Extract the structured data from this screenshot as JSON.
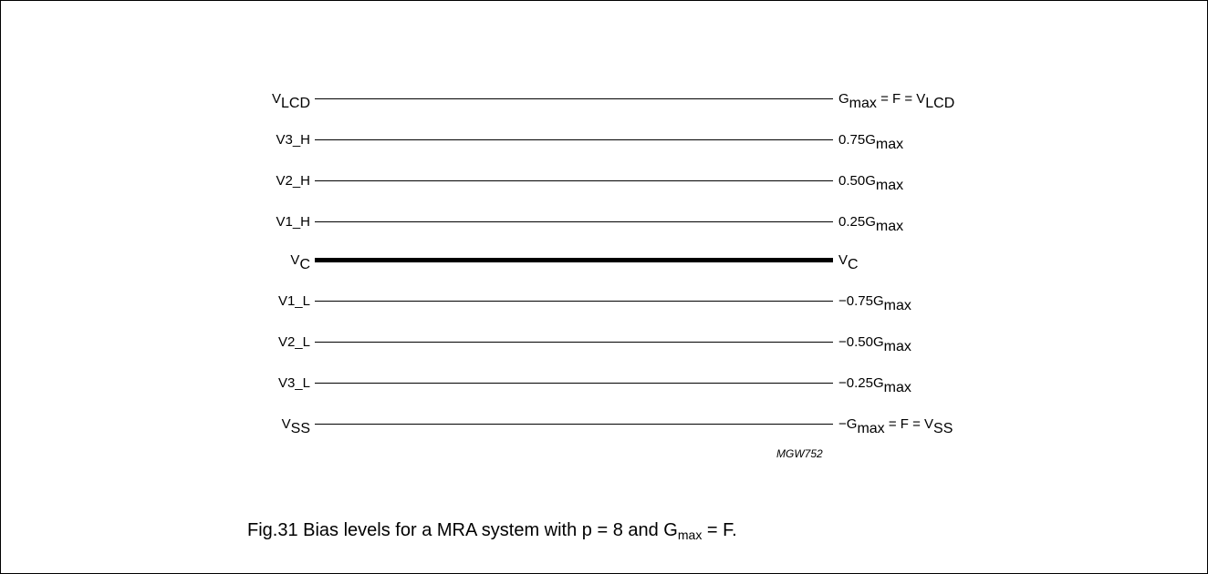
{
  "levels": [
    {
      "left": {
        "base": "V",
        "sub": "LCD"
      },
      "right": {
        "pre": "G",
        "sub": "max",
        "mid": " = F = V",
        "sub2": "LCD"
      },
      "emphasis": false
    },
    {
      "left": {
        "base": "V3_H",
        "sub": ""
      },
      "right": {
        "pre": "0.75G",
        "sub": "max",
        "mid": "",
        "sub2": ""
      },
      "emphasis": false
    },
    {
      "left": {
        "base": "V2_H",
        "sub": ""
      },
      "right": {
        "pre": "0.50G",
        "sub": "max",
        "mid": "",
        "sub2": ""
      },
      "emphasis": false
    },
    {
      "left": {
        "base": "V1_H",
        "sub": ""
      },
      "right": {
        "pre": "0.25G",
        "sub": "max",
        "mid": "",
        "sub2": ""
      },
      "emphasis": false
    },
    {
      "left": {
        "base": "V",
        "sub": "C"
      },
      "right": {
        "pre": "V",
        "sub": "C",
        "mid": "",
        "sub2": ""
      },
      "emphasis": true
    },
    {
      "left": {
        "base": "V1_L",
        "sub": ""
      },
      "right": {
        "pre": "−0.75G",
        "sub": "max",
        "mid": "",
        "sub2": ""
      },
      "emphasis": false
    },
    {
      "left": {
        "base": "V2_L",
        "sub": ""
      },
      "right": {
        "pre": "−0.50G",
        "sub": "max",
        "mid": "",
        "sub2": ""
      },
      "emphasis": false
    },
    {
      "left": {
        "base": "V3_L",
        "sub": ""
      },
      "right": {
        "pre": "−0.25G",
        "sub": "max",
        "mid": "",
        "sub2": ""
      },
      "emphasis": false
    },
    {
      "left": {
        "base": "V",
        "sub": "SS"
      },
      "right": {
        "pre": "−G",
        "sub": "max",
        "mid": " = F = V",
        "sub2": "SS"
      },
      "emphasis": false
    }
  ],
  "figure_code": "MGW752",
  "caption": {
    "pre": "Fig.31  Bias levels for a MRA system with p = 8 and G",
    "sub": "max",
    "post": " = F."
  }
}
